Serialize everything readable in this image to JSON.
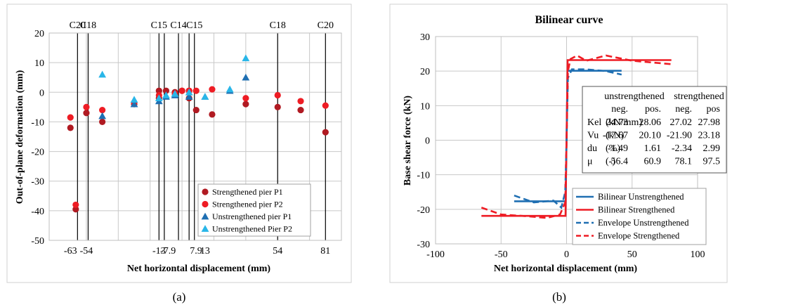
{
  "chart_data": [
    {
      "type": "scatter",
      "panel_label": "(a)",
      "title": "",
      "xlabel": "Net horizontal displacement (mm)",
      "ylabel": "Out-of-plane deformation (mm)",
      "xlim": [
        -75,
        90
      ],
      "ylim": [
        -50,
        20
      ],
      "y_ticks": [
        "20",
        "10",
        "0",
        "-10",
        "-20",
        "-30",
        "-40",
        "-50"
      ],
      "x_tick_labels": [
        {
          "x": -63,
          "label": "-63"
        },
        {
          "x": -54,
          "label": "-54"
        },
        {
          "x": -13,
          "label": "-13"
        },
        {
          "x": -7.9,
          "label": "-7.9"
        },
        {
          "x": 7.9,
          "label": "7.9"
        },
        {
          "x": 13,
          "label": "13"
        },
        {
          "x": 54,
          "label": "54"
        },
        {
          "x": 81,
          "label": "81"
        }
      ],
      "gridlines_x": [
        -54,
        -36,
        -18,
        0,
        18,
        36,
        54,
        72
      ],
      "reference_lines": [
        {
          "x": -59,
          "label": "C20"
        },
        {
          "x": -53,
          "label": "C18"
        },
        {
          "x": -13,
          "label": "C15"
        },
        {
          "x": -10,
          "label": ""
        },
        {
          "x": -2,
          "label": "C14"
        },
        {
          "x": 4,
          "label": ""
        },
        {
          "x": 7,
          "label": "C15"
        },
        {
          "x": 54,
          "label": "C18"
        },
        {
          "x": 81,
          "label": "C20"
        }
      ],
      "grid": true,
      "legend_position": "bottom-right",
      "series": [
        {
          "name": "Strengthened pier P1",
          "marker": "circle",
          "color": "#b01a22",
          "points": [
            [
              -63,
              -12
            ],
            [
              -60,
              -39.5
            ],
            [
              -54,
              -7
            ],
            [
              -45,
              -10
            ],
            [
              -27,
              -4
            ],
            [
              -13,
              0.5
            ],
            [
              -13,
              -2
            ],
            [
              -9,
              0.5
            ],
            [
              -4,
              0
            ],
            [
              0,
              0.5
            ],
            [
              4,
              0.5
            ],
            [
              4,
              -2
            ],
            [
              8,
              -6
            ],
            [
              17,
              -7.5
            ],
            [
              36,
              -4
            ],
            [
              54,
              -5
            ],
            [
              67,
              -6
            ],
            [
              81,
              -13.5
            ]
          ]
        },
        {
          "name": "Strengthened pier P2",
          "marker": "circle",
          "color": "#ee1c24",
          "points": [
            [
              -63,
              -8.5
            ],
            [
              -60,
              -38
            ],
            [
              -54,
              -5
            ],
            [
              -45,
              -6
            ],
            [
              -27,
              -3.5
            ],
            [
              -13,
              -1
            ],
            [
              -4,
              -0.5
            ],
            [
              0,
              0.5
            ],
            [
              4,
              0.5
            ],
            [
              8,
              0.5
            ],
            [
              17,
              1
            ],
            [
              36,
              -2
            ],
            [
              54,
              -1
            ],
            [
              67,
              -3
            ],
            [
              81,
              -4.5
            ]
          ]
        },
        {
          "name": "Unstrengthened pier P1",
          "marker": "triangle",
          "color": "#1f6fb2",
          "points": [
            [
              -45,
              -8
            ],
            [
              -27,
              -4
            ],
            [
              -13,
              -3
            ],
            [
              -9,
              -1.5
            ],
            [
              -4,
              -1
            ],
            [
              4,
              -1.5
            ],
            [
              13,
              -1.5
            ],
            [
              27,
              0.5
            ],
            [
              36,
              5
            ]
          ]
        },
        {
          "name": "Unstrengthened Pier P2",
          "marker": "triangle",
          "color": "#29b6e8",
          "points": [
            [
              -45,
              6
            ],
            [
              -27,
              -2.5
            ],
            [
              -13,
              -2
            ],
            [
              -9,
              -1
            ],
            [
              -4,
              -0.5
            ],
            [
              4,
              0
            ],
            [
              13,
              -1.5
            ],
            [
              27,
              1
            ],
            [
              36,
              11.5
            ]
          ]
        }
      ]
    },
    {
      "type": "line",
      "panel_label": "(b)",
      "title": "Bilinear curve",
      "xlabel": "Net horizontal displacement (mm)",
      "ylabel": "Base shear force (kN)",
      "xlim": [
        -100,
        100
      ],
      "ylim": [
        -30,
        30
      ],
      "x_ticks": [
        "-100",
        "-50",
        "0",
        "50",
        "100"
      ],
      "y_ticks": [
        "30",
        "20",
        "10",
        "0",
        "-10",
        "-20",
        "-30"
      ],
      "grid": true,
      "legend_position": "bottom-center",
      "series": [
        {
          "name": "Bilinear Unstrengthened",
          "color": "#1f6fb2",
          "dash": "solid",
          "x": [
            -40,
            -0.71,
            0.72,
            42
          ],
          "y": [
            -17.67,
            -17.67,
            20.1,
            20.1
          ]
        },
        {
          "name": "Bilinear Strengthened",
          "color": "#ee1c24",
          "dash": "solid",
          "x": [
            -65,
            -0.81,
            0.83,
            80
          ],
          "y": [
            -21.9,
            -21.9,
            23.18,
            23.18
          ]
        },
        {
          "name": "Envelope Unstrengthened",
          "color": "#1f6fb2",
          "dash": "dashed",
          "x": [
            -40,
            -25,
            -10,
            -4,
            -1,
            0,
            1,
            4,
            15,
            30,
            42
          ],
          "y": [
            -16,
            -18,
            -17.5,
            -19.5,
            -15,
            0,
            18,
            20.5,
            20.5,
            20,
            19
          ]
        },
        {
          "name": "Envelope Strengthened",
          "color": "#ee1c24",
          "dash": "dashed",
          "x": [
            -65,
            -50,
            -30,
            -15,
            -5,
            -1,
            0,
            1,
            3,
            8,
            15,
            30,
            50,
            80
          ],
          "y": [
            -19.5,
            -21.5,
            -22,
            -22.5,
            -21.5,
            -18,
            0,
            20,
            23.5,
            24.5,
            23,
            24.5,
            23,
            22
          ]
        }
      ],
      "table": {
        "group_headers": [
          "unstrengthened",
          "strengthened"
        ],
        "col_headers": [
          "neg.",
          "pos.",
          "neg.",
          "pos"
        ],
        "rows": [
          {
            "param": "Kel",
            "unit": "(kN/mm)",
            "values": [
              "24.73",
              "28.06",
              "27.02",
              "27.98"
            ]
          },
          {
            "param": "Vu",
            "unit": "(kN)",
            "values": [
              "-17.67",
              "20.10",
              "-21.90",
              "23.18"
            ]
          },
          {
            "param": "du",
            "unit": "(%)",
            "values": [
              "-1.49",
              "1.61",
              "-2.34",
              "2.99"
            ]
          },
          {
            "param": "μ",
            "unit": "(-)",
            "values": [
              "56.4",
              "60.9",
              "78.1",
              "97.5"
            ]
          }
        ]
      }
    }
  ]
}
